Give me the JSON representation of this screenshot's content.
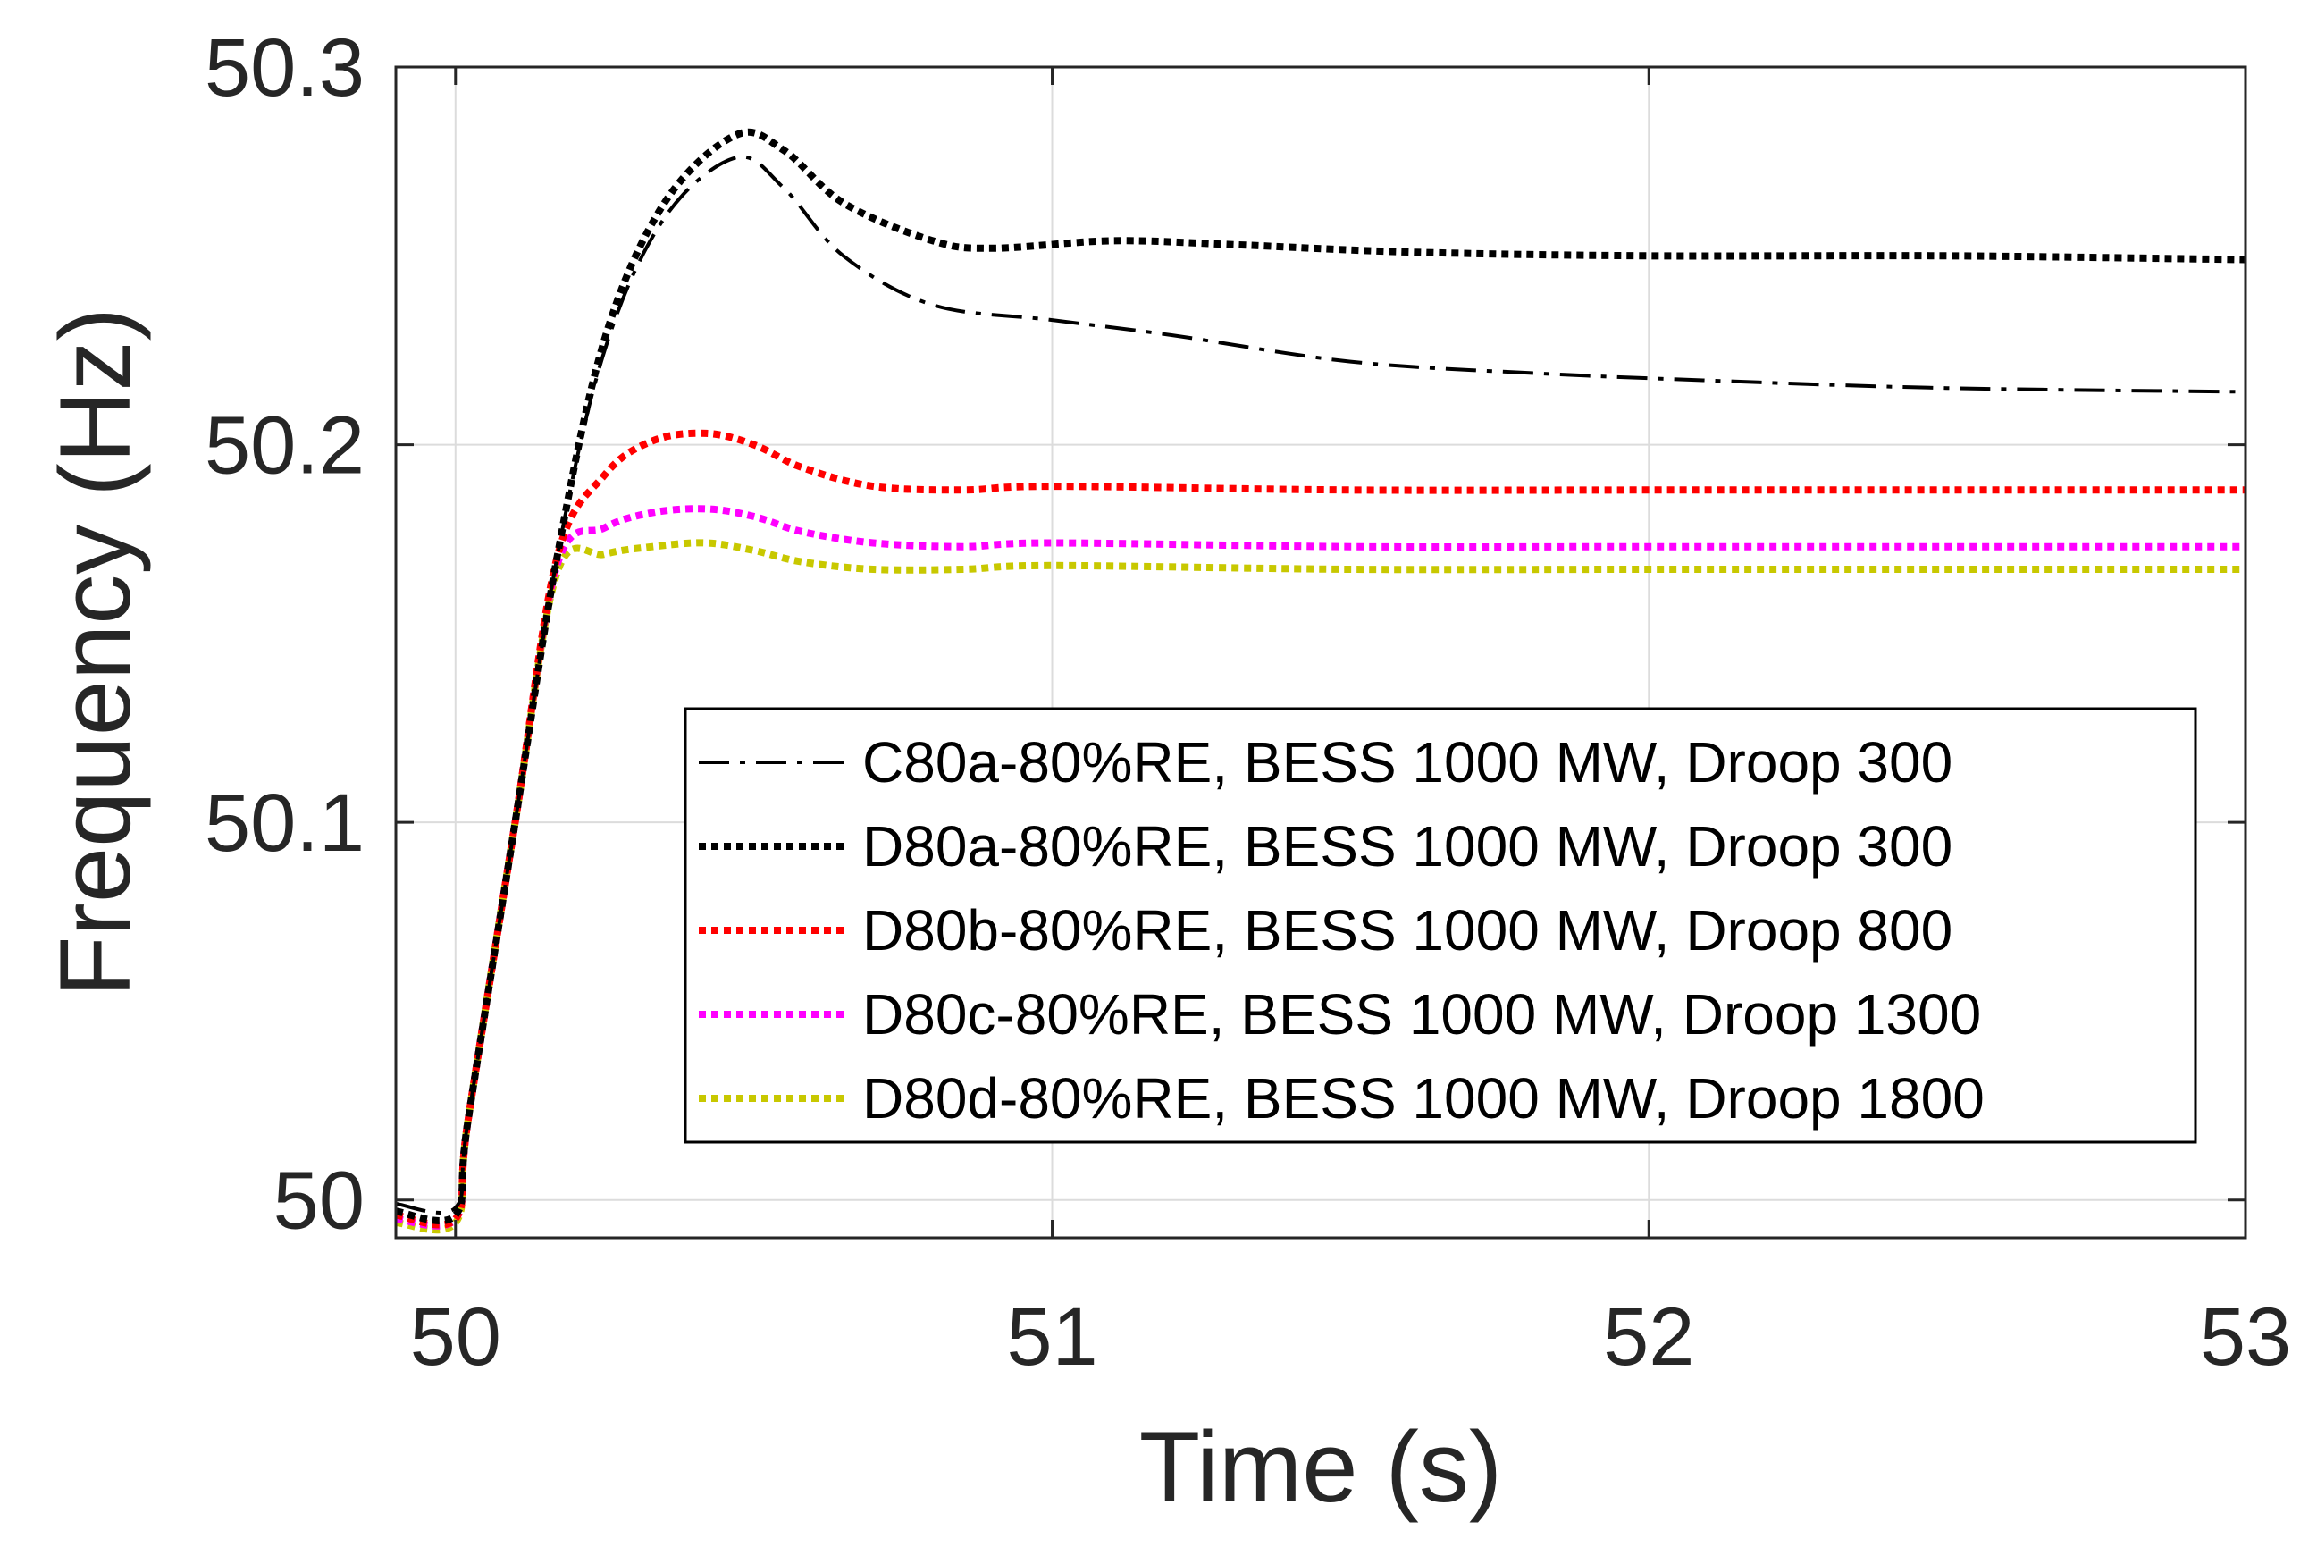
{
  "chart_data": {
    "type": "line",
    "title": "",
    "xlabel": "Time (s)",
    "ylabel": "Frequency (Hz)",
    "xlim": [
      49.9,
      53
    ],
    "ylim": [
      49.99,
      50.3
    ],
    "xticks": [
      50,
      51,
      52,
      53
    ],
    "xtick_labels": [
      "50",
      "51",
      "52",
      "53"
    ],
    "yticks": [
      50,
      50.1,
      50.2,
      50.3
    ],
    "ytick_labels": [
      "50",
      "50.1",
      "50.2",
      "50.3"
    ],
    "grid": true,
    "legend_position": "lower-right",
    "series": [
      {
        "name": "C80a-80%RE, BESS 1000 MW, Droop 300",
        "color": "#000000",
        "style": "dashdot",
        "x": [
          49.9,
          50.0,
          50.02,
          50.1,
          50.17,
          50.25,
          50.35,
          50.47,
          50.55,
          50.65,
          50.8,
          51.0,
          51.2,
          51.5,
          51.8,
          52.1,
          52.5,
          53.0
        ],
        "y": [
          49.999,
          49.998,
          50.02,
          50.1,
          50.17,
          50.225,
          50.26,
          50.276,
          50.268,
          50.25,
          50.237,
          50.233,
          50.229,
          50.222,
          50.219,
          50.217,
          50.215,
          50.214
        ]
      },
      {
        "name": "D80a-80%RE, BESS 1000 MW, Droop 300",
        "color": "#000000",
        "style": "dotted",
        "x": [
          49.9,
          50.0,
          50.02,
          50.1,
          50.17,
          50.25,
          50.35,
          50.47,
          50.55,
          50.65,
          50.8,
          50.9,
          51.1,
          51.3,
          51.6,
          52.0,
          52.5,
          53.0
        ],
        "y": [
          49.997,
          49.996,
          50.02,
          50.1,
          50.17,
          50.228,
          50.264,
          50.282,
          50.278,
          50.264,
          50.254,
          50.252,
          50.254,
          50.253,
          50.251,
          50.25,
          50.25,
          50.249
        ]
      },
      {
        "name": "D80b-80%RE, BESS 1000 MW, Droop 800",
        "color": "#ff0000",
        "style": "dotted",
        "x": [
          49.9,
          50.0,
          50.02,
          50.1,
          50.17,
          50.25,
          50.33,
          50.42,
          50.5,
          50.58,
          50.7,
          50.85,
          51.0,
          51.5,
          52.0,
          52.5,
          53.0
        ],
        "y": [
          49.996,
          49.995,
          50.02,
          50.1,
          50.17,
          50.192,
          50.201,
          50.203,
          50.2,
          50.194,
          50.189,
          50.188,
          50.189,
          50.188,
          50.188,
          50.188,
          50.188
        ]
      },
      {
        "name": "D80c-80%RE, BESS 1000 MW, Droop 1300",
        "color": "#ff00ff",
        "style": "dotted",
        "x": [
          49.9,
          50.0,
          50.02,
          50.1,
          50.17,
          50.25,
          50.33,
          50.42,
          50.5,
          50.58,
          50.7,
          50.85,
          51.0,
          51.5,
          52.0,
          52.5,
          53.0
        ],
        "y": [
          49.995,
          49.995,
          50.02,
          50.1,
          50.168,
          50.178,
          50.182,
          50.183,
          50.181,
          50.177,
          50.174,
          50.173,
          50.174,
          50.173,
          50.173,
          50.173,
          50.173
        ]
      },
      {
        "name": "D80d-80%RE, BESS 1000 MW, Droop 1800",
        "color": "#c8c800",
        "style": "dotted",
        "x": [
          49.9,
          50.0,
          50.02,
          50.1,
          50.17,
          50.25,
          50.33,
          50.42,
          50.5,
          50.58,
          50.7,
          50.85,
          51.0,
          51.5,
          52.0,
          52.5,
          53.0
        ],
        "y": [
          49.994,
          49.994,
          50.02,
          50.1,
          50.166,
          50.171,
          50.173,
          50.174,
          50.172,
          50.169,
          50.167,
          50.167,
          50.168,
          50.167,
          50.167,
          50.167,
          50.167
        ]
      }
    ]
  }
}
